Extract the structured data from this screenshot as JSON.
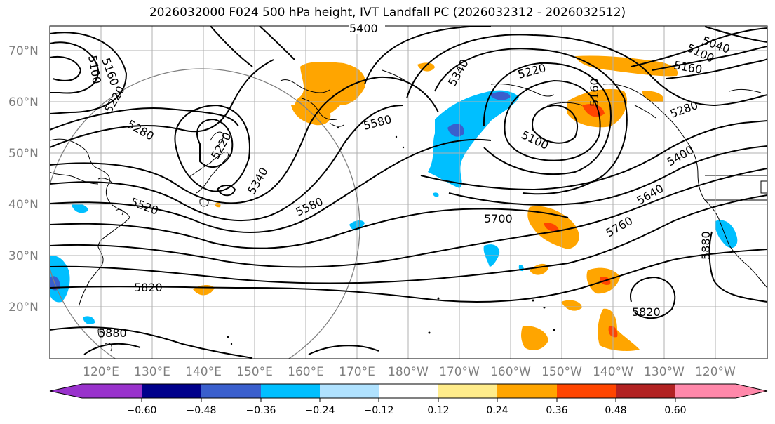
{
  "title": "2026032000 F024 500 hPa height, IVT Landfall PC (2026032312 - 2026032512)",
  "map": {
    "lat_labels": [
      "70°N",
      "60°N",
      "50°N",
      "40°N",
      "30°N",
      "20°N"
    ],
    "lon_labels": [
      "120°E",
      "130°E",
      "140°E",
      "150°E",
      "160°E",
      "170°E",
      "180°W",
      "170°W",
      "160°W",
      "150°W",
      "140°W",
      "130°W",
      "120°W"
    ],
    "contour_labels": [
      "5400",
      "5160",
      "5100",
      "5220",
      "5280",
      "5220",
      "5340",
      "5520",
      "5580",
      "5340",
      "5220",
      "5580",
      "5160",
      "5100",
      "5280",
      "5400",
      "5640",
      "5700",
      "5760",
      "5820",
      "5820",
      "5880",
      "5040",
      "5100",
      "5160",
      "5880"
    ]
  },
  "colorbar": {
    "ticks": [
      "−0.60",
      "−0.48",
      "−0.36",
      "−0.24",
      "−0.12",
      "0.12",
      "0.24",
      "0.36",
      "0.48",
      "0.60"
    ],
    "colors": [
      "#9932cc",
      "#00008b",
      "#3a5fcd",
      "#00bfff",
      "#b0e2ff",
      "#ffffff",
      "#ffec8b",
      "#ffa500",
      "#ff4500",
      "#b22222",
      "#ff88aa"
    ]
  },
  "colors": {
    "contour": "#000000",
    "coast": "#000000",
    "grid": "#b0b0b0",
    "circle": "#808080"
  }
}
